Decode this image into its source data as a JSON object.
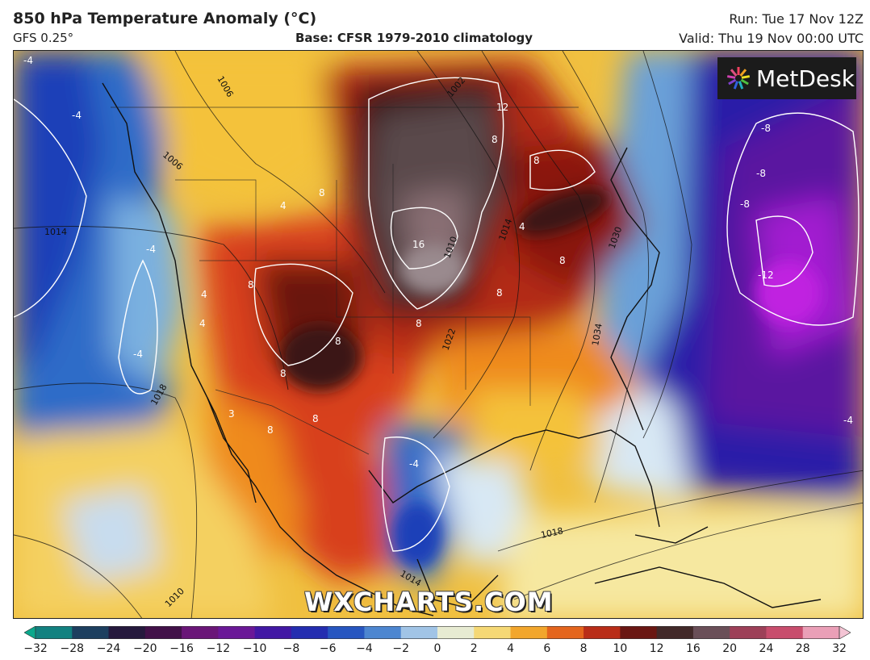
{
  "header": {
    "title": "850 hPa Temperature Anomaly (°C)",
    "model": "GFS 0.25°",
    "base": "Base: CFSR 1979-2010 climatology",
    "run": "Run: Tue 17 Nov 12Z",
    "valid": "Valid: Thu 19 Nov 00:00 UTC"
  },
  "logo": {
    "text": "MetDesk",
    "icon": "metdesk-star-icon"
  },
  "watermark": "WXCHARTS.COM",
  "map": {
    "anomaly_labels": [
      "-4",
      "-4",
      "-4",
      "-4",
      "-4",
      "-8",
      "-8",
      "-8",
      "-12",
      "-4",
      "4",
      "4",
      "4",
      "4",
      "8",
      "8",
      "8",
      "8",
      "8",
      "8",
      "8",
      "8",
      "8",
      "8",
      "8",
      "12",
      "16",
      "3"
    ],
    "isobar_labels": [
      "1006",
      "1006",
      "1002",
      "1014",
      "1018",
      "1010",
      "1022",
      "1014",
      "1030",
      "1034",
      "1018",
      "1014",
      "1010"
    ]
  },
  "colorbar": {
    "ticks": [
      "−32",
      "−28",
      "−24",
      "−20",
      "−16",
      "−12",
      "−10",
      "−8",
      "−6",
      "−4",
      "−2",
      "0",
      "2",
      "4",
      "6",
      "8",
      "10",
      "12",
      "16",
      "20",
      "24",
      "28",
      "32"
    ],
    "colors": [
      "#0aa88c",
      "#1a5a74",
      "#20234a",
      "#2a0f30",
      "#5a1262",
      "#7a1a8e",
      "#5a16a0",
      "#2a1aa8",
      "#1e3fb8",
      "#2f6cc8",
      "#6aa0d8",
      "#d8e8f4",
      "#f6eeb0",
      "#f4c23a",
      "#ef8a1e",
      "#d8401c",
      "#9a1a14",
      "#3a1412",
      "#4a3e40",
      "#8a6070",
      "#b02040",
      "#e07a9a",
      "#f4c4d4"
    ]
  }
}
